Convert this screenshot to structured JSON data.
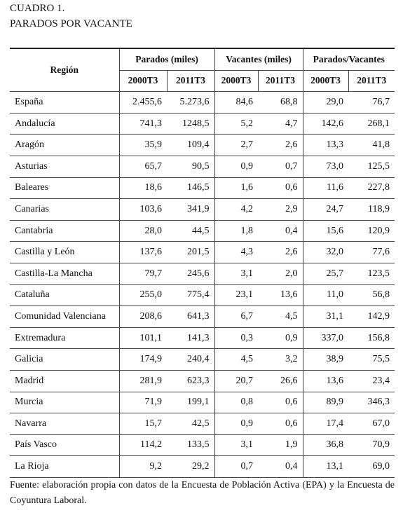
{
  "header": {
    "title": "CUADRO 1.",
    "subtitle": "PARADOS POR VACANTE"
  },
  "table": {
    "region_header": "Región",
    "groups": [
      "Parados (miles)",
      "Vacantes (miles)",
      "Parados/Vacantes"
    ],
    "subheaders": [
      "2000T3",
      "2011T3",
      "2000T3",
      "2011T3",
      "2000T3",
      "2011T3"
    ],
    "rows": [
      [
        "España",
        "2.455,6",
        "5.273,6",
        "84,6",
        "68,8",
        "29,0",
        "76,7"
      ],
      [
        "Andalucía",
        "741,3",
        "1248,5",
        "5,2",
        "4,7",
        "142,6",
        "268,1"
      ],
      [
        "Aragón",
        "35,9",
        "109,4",
        "2,7",
        "2,6",
        "13,3",
        "41,8"
      ],
      [
        "Asturias",
        "65,7",
        "90,5",
        "0,9",
        "0,7",
        "73,0",
        "125,5"
      ],
      [
        "Baleares",
        "18,6",
        "146,5",
        "1,6",
        "0,6",
        "11,6",
        "227,8"
      ],
      [
        "Canarias",
        "103,6",
        "341,9",
        "4,2",
        "2,9",
        "24,7",
        "118,9"
      ],
      [
        "Cantabria",
        "28,0",
        "44,5",
        "1,8",
        "0,4",
        "15,6",
        "120,9"
      ],
      [
        "Castilla y León",
        "137,6",
        "201,5",
        "4,3",
        "2,6",
        "32,0",
        "77,6"
      ],
      [
        "Castilla-La Mancha",
        "79,7",
        "245,6",
        "3,1",
        "2,0",
        "25,7",
        "123,5"
      ],
      [
        "Cataluña",
        "255,0",
        "775,4",
        "23,1",
        "13,6",
        "11,0",
        "56,8"
      ],
      [
        "Comunidad Valenciana",
        "208,6",
        "641,3",
        "6,7",
        "4,5",
        "31,1",
        "142,9"
      ],
      [
        "Extremadura",
        "101,1",
        "141,3",
        "0,3",
        "0,9",
        "337,0",
        "156,8"
      ],
      [
        "Galicia",
        "174,9",
        "240,4",
        "4,5",
        "3,2",
        "38,9",
        "75,5"
      ],
      [
        "Madrid",
        "281,9",
        "623,3",
        "20,7",
        "26,6",
        "13,6",
        "23,4"
      ],
      [
        "Murcia",
        "71,9",
        "199,1",
        "0,8",
        "0,6",
        "89,9",
        "346,3"
      ],
      [
        "Navarra",
        "15,7",
        "42,5",
        "0,9",
        "0,6",
        "17,4",
        "67,0"
      ],
      [
        "País Vasco",
        "114,2",
        "133,5",
        "3,1",
        "1,9",
        "36,8",
        "70,9"
      ],
      [
        "La Rioja",
        "9,2",
        "29,2",
        "0,7",
        "0,4",
        "13,1",
        "69,0"
      ]
    ]
  },
  "source": "Fuente: elaboración propia con datos de la Encuesta de Población Activa (EPA) y la Encuesta de Coyuntura Laboral."
}
